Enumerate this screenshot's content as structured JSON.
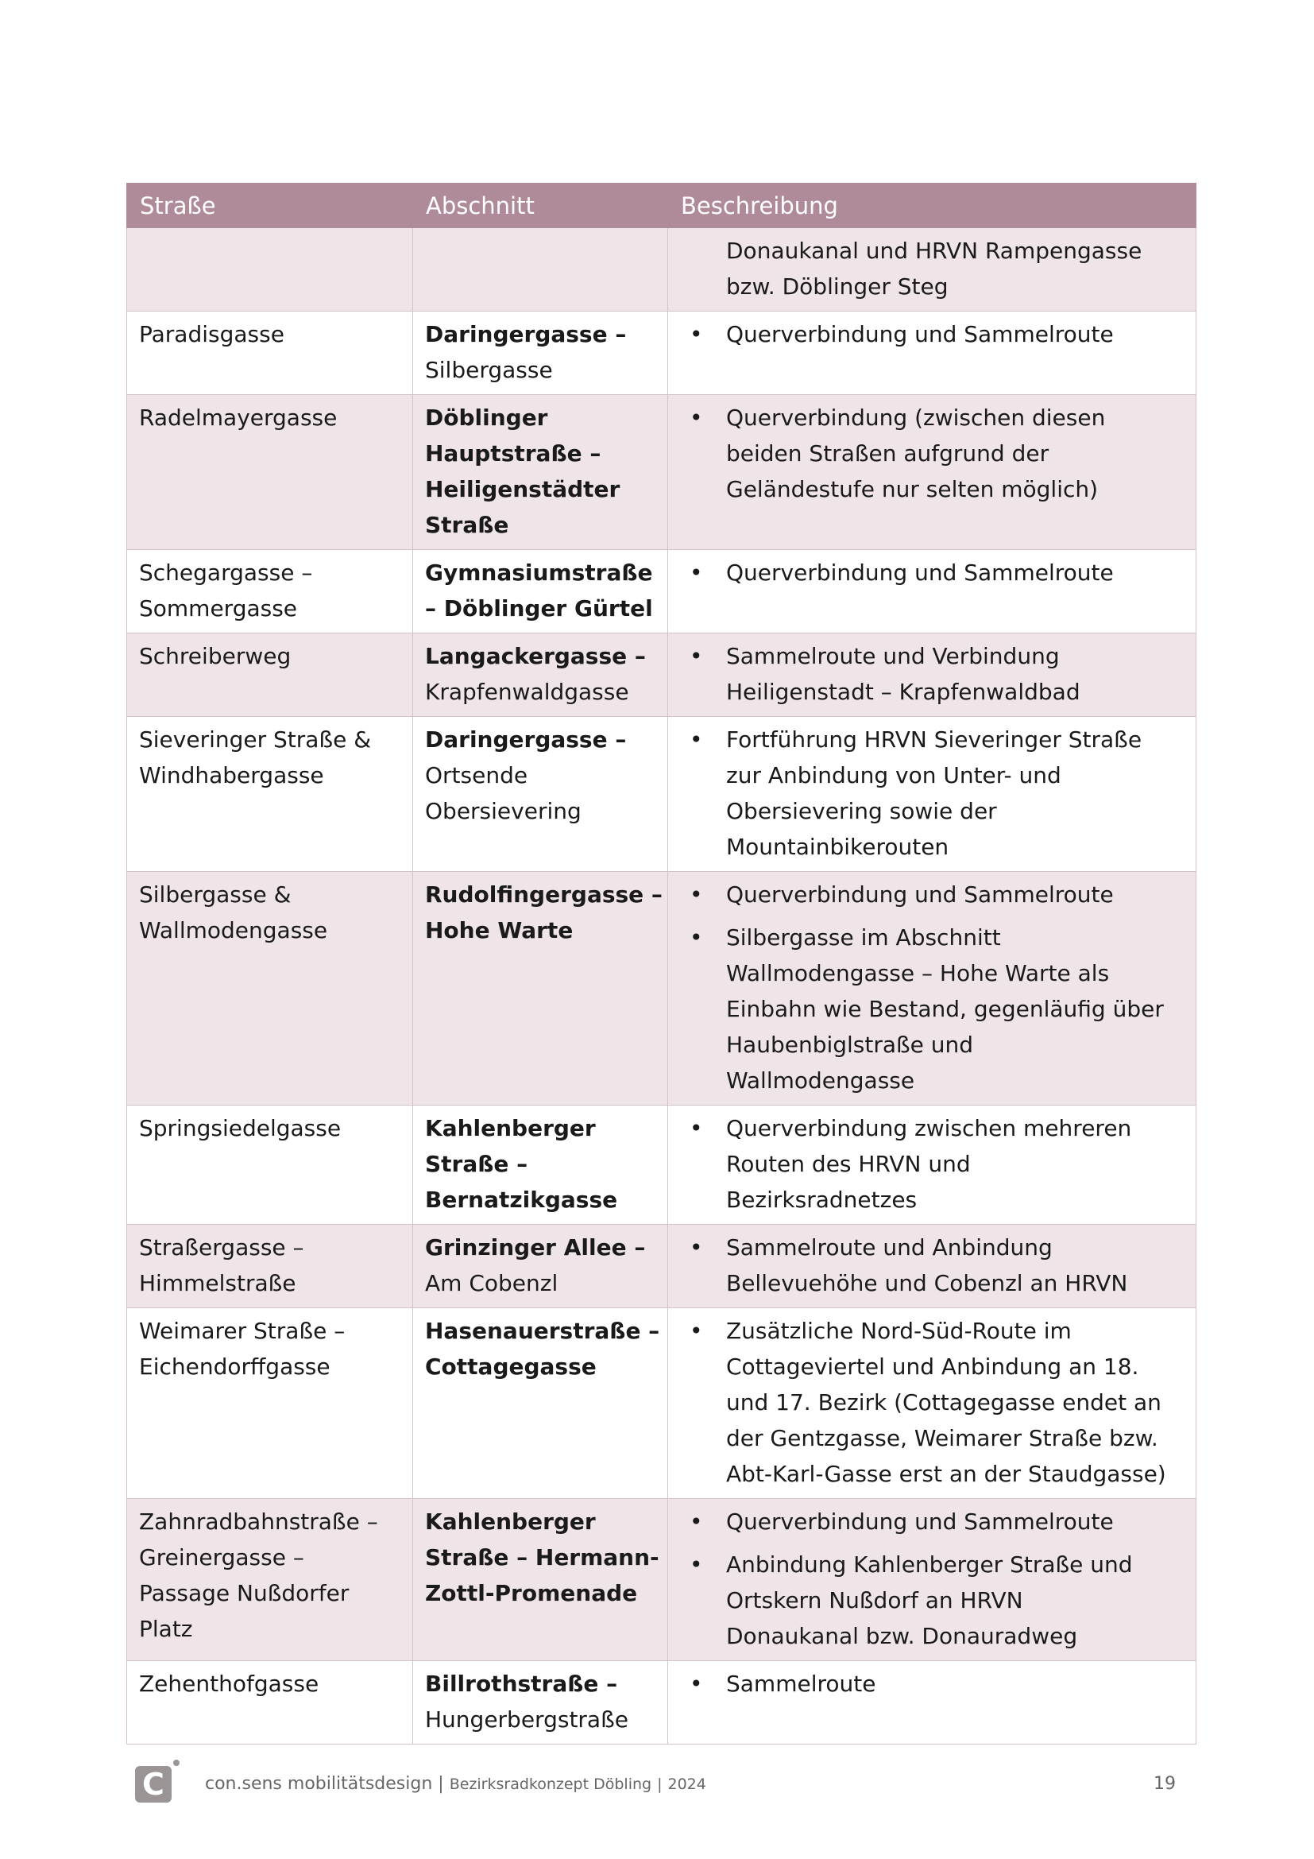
{
  "table": {
    "headers": [
      "Straße",
      "Abschnitt",
      "Beschreibung"
    ],
    "header_color": "#AF8A98",
    "shade_color": "#EFE5E9",
    "rows": [
      {
        "strasse": [],
        "abschnitt": [],
        "continuation": [
          "Donaukanal und HRVN Rampengasse",
          "bzw. Döblinger Steg"
        ],
        "bullets": []
      },
      {
        "strasse": [
          "Paradisgasse"
        ],
        "abschnitt": [
          {
            "t": "Daringergasse –",
            "b": true
          },
          {
            "t": "Silbergasse"
          }
        ],
        "bullets": [
          [
            "Querverbindung und Sammelroute"
          ]
        ]
      },
      {
        "strasse": [
          "Radelmayergasse"
        ],
        "abschnitt": [
          {
            "t": "Döblinger",
            "b": true
          },
          {
            "t": "Hauptstraße –",
            "b": true
          },
          {
            "t": "Heiligenstädter",
            "b": true
          },
          {
            "t": "Straße",
            "b": true
          }
        ],
        "bullets": [
          [
            "Querverbindung (zwischen diesen",
            "beiden Straßen aufgrund der",
            "Geländestufe nur selten möglich)"
          ]
        ]
      },
      {
        "strasse": [
          "Schegargasse –",
          "Sommergasse"
        ],
        "abschnitt": [
          {
            "t": "Gymnasiumstraße",
            "b": true
          },
          {
            "t": "– Döblinger Gürtel",
            "b": true
          }
        ],
        "bullets": [
          [
            "Querverbindung und Sammelroute"
          ]
        ]
      },
      {
        "strasse": [
          "Schreiberweg"
        ],
        "abschnitt": [
          {
            "t": "Langackergasse –",
            "b": true
          },
          {
            "t": "Krapfenwaldgasse"
          }
        ],
        "bullets": [
          [
            "Sammelroute und Verbindung",
            "Heiligenstadt – Krapfenwaldbad"
          ]
        ]
      },
      {
        "strasse": [
          "Sieveringer Straße &",
          "Windhabergasse"
        ],
        "abschnitt": [
          {
            "t": "Daringergasse –",
            "b": true
          },
          {
            "t": "Ortsende"
          },
          {
            "t": "Obersievering"
          }
        ],
        "bullets": [
          [
            "Fortführung HRVN Sieveringer Straße",
            "zur Anbindung von Unter- und",
            "Obersievering sowie der",
            "Mountainbikerouten"
          ]
        ]
      },
      {
        "strasse": [
          "Silbergasse &",
          "Wallmodengasse"
        ],
        "abschnitt": [
          {
            "t": "Rudolfingergasse –",
            "b": true
          },
          {
            "t": "Hohe Warte",
            "b": true
          }
        ],
        "bullets": [
          [
            "Querverbindung und Sammelroute"
          ],
          [
            "Silbergasse im Abschnitt",
            "Wallmodengasse – Hohe Warte als",
            "Einbahn wie Bestand, gegenläufig über",
            "Haubenbiglstraße und",
            "Wallmodengasse"
          ]
        ]
      },
      {
        "strasse": [
          "Springsiedelgasse"
        ],
        "abschnitt": [
          {
            "t": "Kahlenberger",
            "b": true
          },
          {
            "t": "Straße –",
            "b": true
          },
          {
            "t": "Bernatzikgasse",
            "b": true
          }
        ],
        "bullets": [
          [
            "Querverbindung zwischen mehreren",
            "Routen des HRVN und",
            "Bezirksradnetzes"
          ]
        ]
      },
      {
        "strasse": [
          "Straßergasse –",
          "Himmelstraße"
        ],
        "abschnitt": [
          {
            "t": "Grinzinger Allee –",
            "b": true
          },
          {
            "t": "Am Cobenzl"
          }
        ],
        "bullets": [
          [
            "Sammelroute und Anbindung",
            "Bellevuehöhe und Cobenzl an HRVN"
          ]
        ]
      },
      {
        "strasse": [
          "Weimarer Straße –",
          "Eichendorffgasse"
        ],
        "abschnitt": [
          {
            "t": "Hasenauerstraße –",
            "b": true
          },
          {
            "t": "Cottagegasse",
            "b": true
          }
        ],
        "bullets": [
          [
            "Zusätzliche Nord-Süd-Route im",
            "Cottageviertel und Anbindung an 18.",
            "und 17. Bezirk (Cottagegasse endet an",
            "der Gentzgasse, Weimarer Straße bzw.",
            "Abt-Karl-Gasse erst an der Staudgasse)"
          ]
        ]
      },
      {
        "strasse": [
          "Zahnradbahnstraße –",
          "Greinergasse –",
          "Passage Nußdorfer",
          "Platz"
        ],
        "abschnitt": [
          {
            "t": "Kahlenberger",
            "b": true
          },
          {
            "t": "Straße – Hermann-",
            "b": true
          },
          {
            "t": "Zottl-Promenade",
            "b": true
          }
        ],
        "bullets": [
          [
            "Querverbindung und Sammelroute"
          ],
          [
            "Anbindung Kahlenberger Straße und",
            "Ortskern Nußdorf an HRVN",
            "Donaukanal bzw. Donauradweg"
          ]
        ]
      },
      {
        "strasse": [
          "Zehenthofgasse"
        ],
        "abschnitt": [
          {
            "t": "Billrothstraße –",
            "b": true
          },
          {
            "t": "Hungerbergstraße"
          }
        ],
        "bullets": [
          [
            "Sammelroute"
          ]
        ]
      }
    ],
    "bullet_glyph": "•"
  },
  "footer": {
    "logo_icon": "consens-logo-icon",
    "logo_letter": "C",
    "company": "con.sens mobilitätsdesign",
    "separator": "|",
    "project": "Bezirksradkonzept Döbling",
    "year": "2024",
    "page_number": "19"
  }
}
